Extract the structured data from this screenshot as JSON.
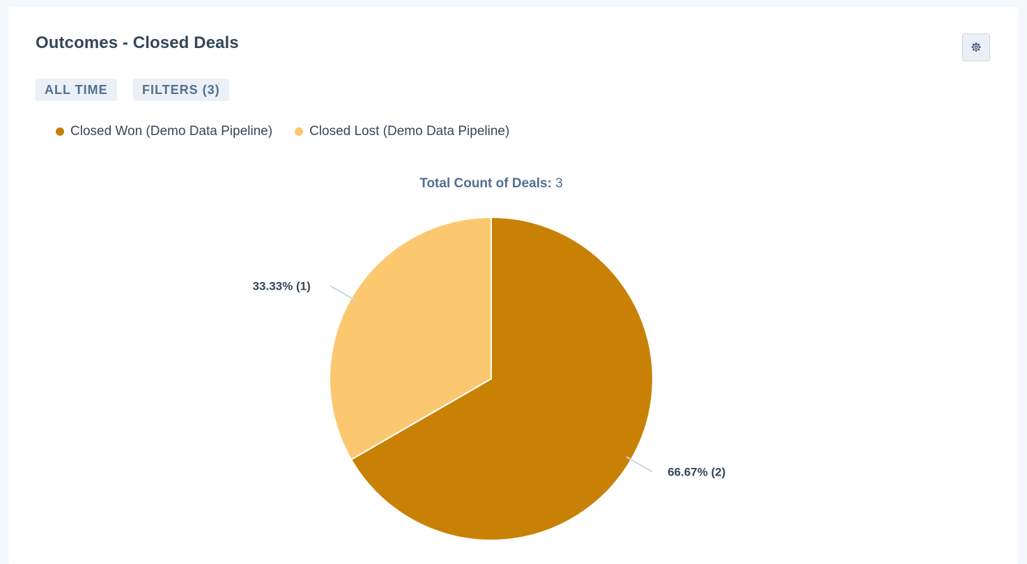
{
  "header": {
    "title": "Outcomes - Closed Deals"
  },
  "toolbar": {
    "settings_icon": "gear-icon",
    "date_tag": "ALL TIME",
    "filters_tag": "FILTERS (3)"
  },
  "legend": {
    "items": [
      {
        "label": "Closed Won (Demo Data Pipeline)",
        "color": "#c98105"
      },
      {
        "label": "Closed Lost (Demo Data Pipeline)",
        "color": "#fcc86f"
      }
    ]
  },
  "summary": {
    "label": "Total Count of Deals:",
    "value": "3"
  },
  "chart_data": {
    "type": "pie",
    "categories": [
      "Closed Won (Demo Data Pipeline)",
      "Closed Lost (Demo Data Pipeline)"
    ],
    "values": [
      2,
      1
    ],
    "percentages": [
      66.67,
      33.33
    ],
    "data_labels": [
      "66.67% (2)",
      "33.33% (1)"
    ],
    "colors": [
      "#c98105",
      "#fcc86f"
    ],
    "legend_position": "top-left"
  }
}
